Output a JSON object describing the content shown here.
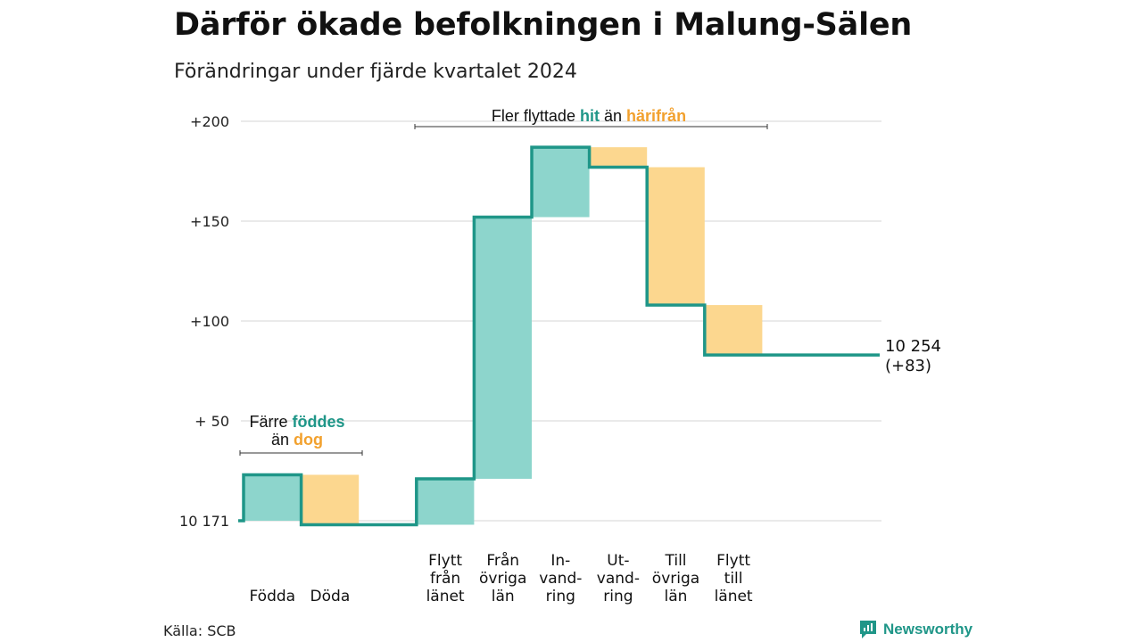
{
  "title": "Därför ökade befolkningen i Malung-Sälen",
  "subtitle": "Förändringar under fjärde kvartalet 2024",
  "source": "Källa: SCB",
  "logo_text": "Newsworthy",
  "colors": {
    "increase": "#8dd5cc",
    "decrease": "#fcd78f",
    "line": "#1f9688",
    "grid": "#dddddd"
  },
  "annotations": {
    "births": {
      "line1_prefix": "Färre",
      "line1_teal": "föddes",
      "line2_prefix": "än",
      "line2_orange": "dog"
    },
    "moves": {
      "prefix": "Fler flyttade",
      "teal": "hit",
      "middle": "än",
      "orange": "härifrån"
    }
  },
  "chart_data": {
    "type": "waterfall",
    "y_tick_labels": [
      "10 171",
      "+ 50",
      "+100",
      "+150",
      "+200"
    ],
    "y_tick_values": [
      0,
      50,
      100,
      150,
      200
    ],
    "ylim": [
      0,
      200
    ],
    "start_value": 10171,
    "end_label": [
      "10 254",
      "(+83)"
    ],
    "end_change": 83,
    "steps": [
      {
        "label": [
          "Födda"
        ],
        "change": 23,
        "kind": "increase"
      },
      {
        "label": [
          "Döda"
        ],
        "change": -25,
        "kind": "decrease"
      },
      {
        "label": [],
        "change": 0,
        "kind": "none"
      },
      {
        "label": [
          "Flytt",
          "från",
          "länet"
        ],
        "change": 23,
        "kind": "increase"
      },
      {
        "label": [
          "Från",
          "övriga",
          "län"
        ],
        "change": 131,
        "kind": "increase"
      },
      {
        "label": [
          "In-",
          "vand-",
          "ring"
        ],
        "change": 35,
        "kind": "increase"
      },
      {
        "label": [
          "Ut-",
          "vand-",
          "ring"
        ],
        "change": -10,
        "kind": "decrease"
      },
      {
        "label": [
          "Till",
          "övriga",
          "län"
        ],
        "change": -69,
        "kind": "decrease"
      },
      {
        "label": [
          "Flytt",
          "till",
          "länet"
        ],
        "change": -25,
        "kind": "decrease"
      }
    ],
    "grid": true
  }
}
